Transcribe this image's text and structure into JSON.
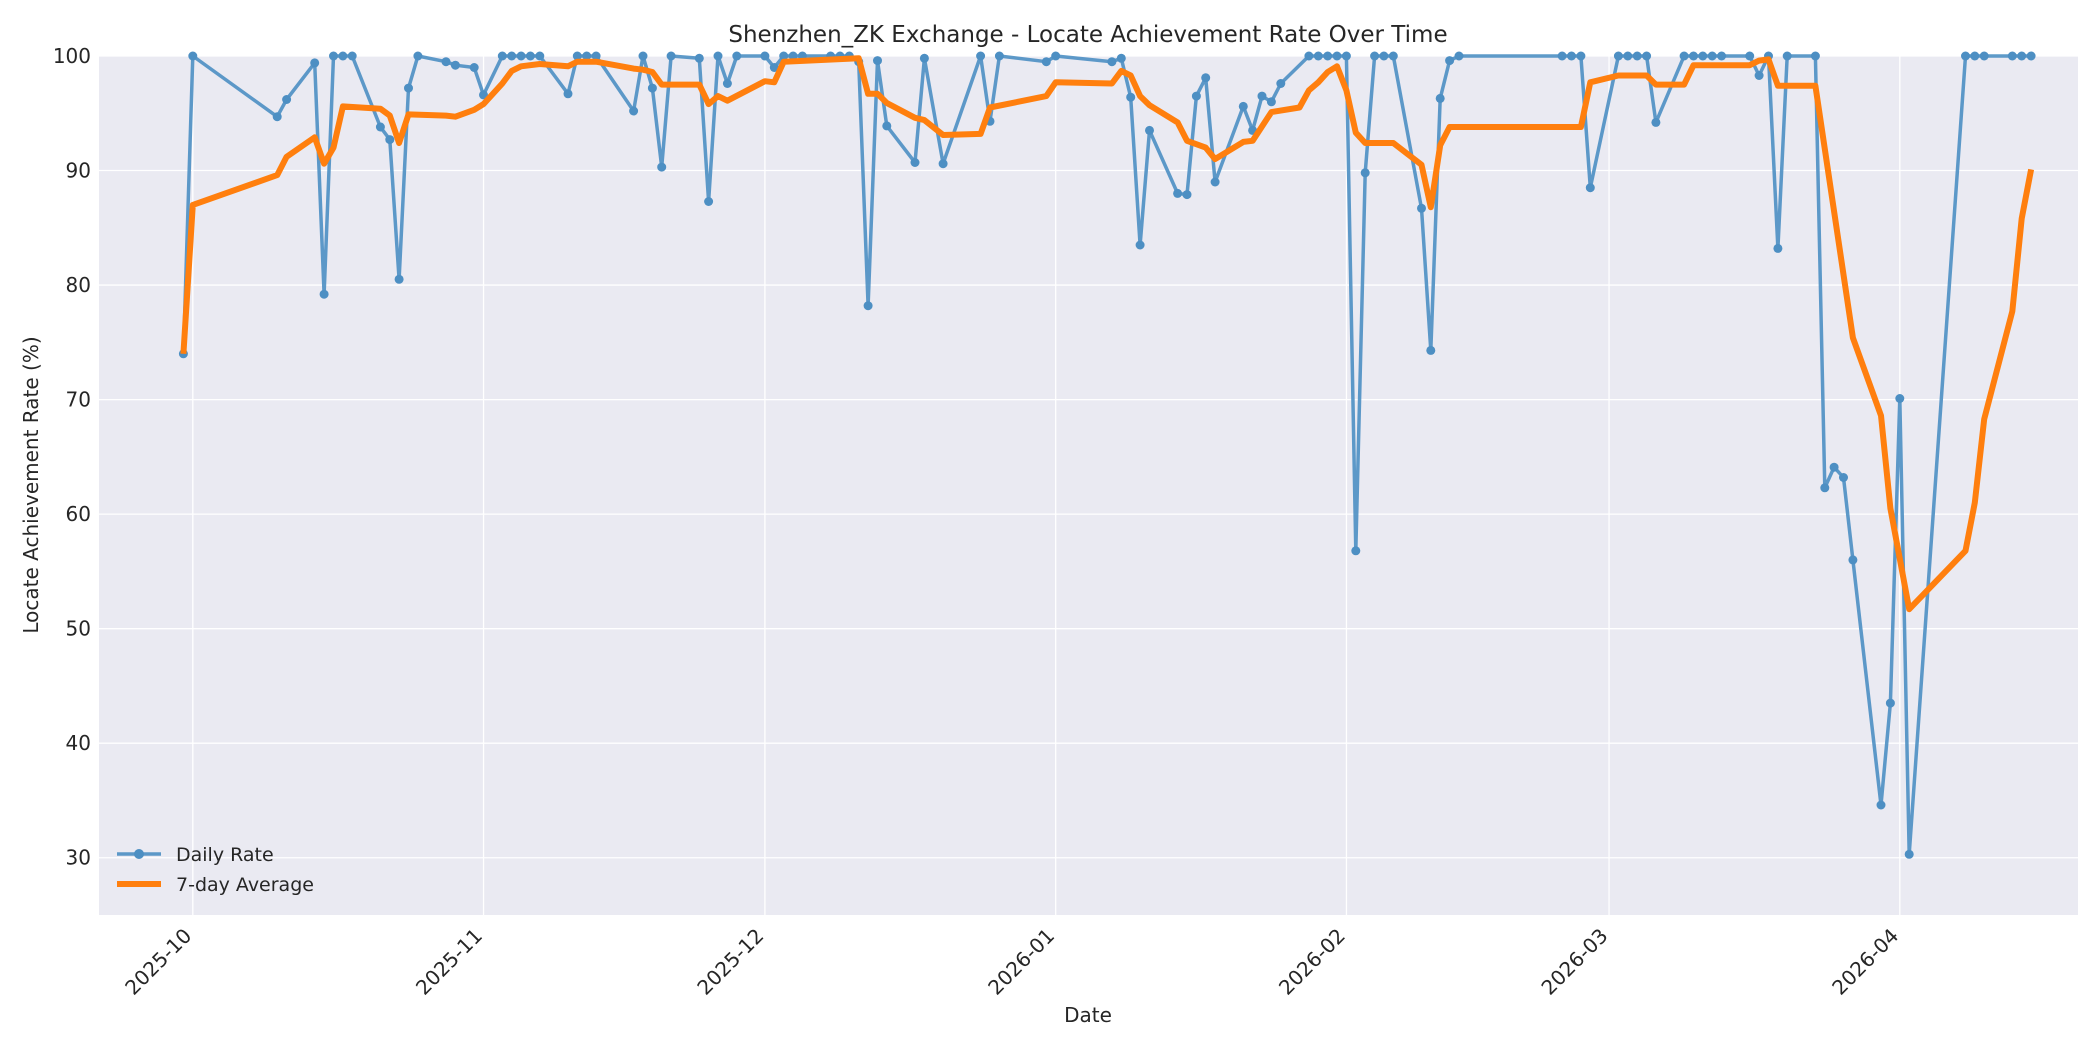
{
  "chart_data": {
    "type": "line",
    "title": "Shenzhen_ZK Exchange - Locate Achievement Rate Over Time",
    "xlabel": "Date",
    "ylabel": "Locate Achievement Rate (%)",
    "xlim": [
      "2025-09-21",
      "2026-04-20"
    ],
    "ylim": [
      25,
      100
    ],
    "y_ticks": [
      30,
      40,
      50,
      60,
      70,
      80,
      90,
      100
    ],
    "x_ticks": [
      "2025-10-01",
      "2025-11-01",
      "2025-12-01",
      "2026-01-01",
      "2026-02-01",
      "2026-03-01",
      "2026-04-01"
    ],
    "x_tick_labels": [
      "2025-10",
      "2025-11",
      "2025-12",
      "2026-01",
      "2026-02",
      "2026-03",
      "2026-04"
    ],
    "grid": true,
    "legend": "lower-left",
    "background": "#eaeaf2",
    "series": [
      {
        "name": "Daily Rate",
        "color": "#4d8fc3",
        "marker": "circle",
        "points": [
          [
            "2025-09-30",
            74.0
          ],
          [
            "2025-10-01",
            100.0
          ],
          [
            "2025-10-10",
            94.7
          ],
          [
            "2025-10-11",
            96.2
          ],
          [
            "2025-10-14",
            99.4
          ],
          [
            "2025-10-15",
            79.2
          ],
          [
            "2025-10-16",
            100.0
          ],
          [
            "2025-10-17",
            100.0
          ],
          [
            "2025-10-18",
            100.0
          ],
          [
            "2025-10-21",
            93.8
          ],
          [
            "2025-10-22",
            92.7
          ],
          [
            "2025-10-23",
            80.5
          ],
          [
            "2025-10-24",
            97.2
          ],
          [
            "2025-10-25",
            100.0
          ],
          [
            "2025-10-28",
            99.5
          ],
          [
            "2025-10-29",
            99.2
          ],
          [
            "2025-10-31",
            99.0
          ],
          [
            "2025-11-01",
            96.6
          ],
          [
            "2025-11-03",
            100.0
          ],
          [
            "2025-11-04",
            100.0
          ],
          [
            "2025-11-05",
            100.0
          ],
          [
            "2025-11-06",
            100.0
          ],
          [
            "2025-11-07",
            100.0
          ],
          [
            "2025-11-10",
            96.7
          ],
          [
            "2025-11-11",
            100.0
          ],
          [
            "2025-11-12",
            100.0
          ],
          [
            "2025-11-13",
            100.0
          ],
          [
            "2025-11-17",
            95.2
          ],
          [
            "2025-11-18",
            100.0
          ],
          [
            "2025-11-19",
            97.2
          ],
          [
            "2025-11-20",
            90.3
          ],
          [
            "2025-11-21",
            100.0
          ],
          [
            "2025-11-24",
            99.8
          ],
          [
            "2025-11-25",
            87.3
          ],
          [
            "2025-11-26",
            100.0
          ],
          [
            "2025-11-27",
            97.6
          ],
          [
            "2025-11-28",
            100.0
          ],
          [
            "2025-12-01",
            100.0
          ],
          [
            "2025-12-02",
            99.0
          ],
          [
            "2025-12-03",
            100.0
          ],
          [
            "2025-12-04",
            100.0
          ],
          [
            "2025-12-05",
            100.0
          ],
          [
            "2025-12-08",
            100.0
          ],
          [
            "2025-12-09",
            100.0
          ],
          [
            "2025-12-10",
            100.0
          ],
          [
            "2025-12-11",
            99.5
          ],
          [
            "2025-12-12",
            78.2
          ],
          [
            "2025-12-13",
            99.6
          ],
          [
            "2025-12-14",
            93.9
          ],
          [
            "2025-12-17",
            90.7
          ],
          [
            "2025-12-18",
            99.8
          ],
          [
            "2025-12-20",
            90.6
          ],
          [
            "2025-12-24",
            100.0
          ],
          [
            "2025-12-25",
            94.3
          ],
          [
            "2025-12-26",
            100.0
          ],
          [
            "2025-12-31",
            99.5
          ],
          [
            "2026-01-01",
            100.0
          ],
          [
            "2026-01-07",
            99.5
          ],
          [
            "2026-01-08",
            99.8
          ],
          [
            "2026-01-09",
            96.4
          ],
          [
            "2026-01-10",
            83.5
          ],
          [
            "2026-01-11",
            93.5
          ],
          [
            "2026-01-14",
            88.0
          ],
          [
            "2026-01-15",
            87.9
          ],
          [
            "2026-01-16",
            96.5
          ],
          [
            "2026-01-17",
            98.1
          ],
          [
            "2026-01-18",
            89.0
          ],
          [
            "2026-01-21",
            95.6
          ],
          [
            "2026-01-22",
            93.5
          ],
          [
            "2026-01-23",
            96.5
          ],
          [
            "2026-01-24",
            96.0
          ],
          [
            "2026-01-25",
            97.6
          ],
          [
            "2026-01-28",
            100.0
          ],
          [
            "2026-01-29",
            100.0
          ],
          [
            "2026-01-30",
            100.0
          ],
          [
            "2026-01-31",
            100.0
          ],
          [
            "2026-02-01",
            100.0
          ],
          [
            "2026-02-02",
            56.8
          ],
          [
            "2026-02-03",
            89.8
          ],
          [
            "2026-02-04",
            100.0
          ],
          [
            "2026-02-05",
            100.0
          ],
          [
            "2026-02-06",
            100.0
          ],
          [
            "2026-02-09",
            86.7
          ],
          [
            "2026-02-10",
            74.3
          ],
          [
            "2026-02-11",
            96.3
          ],
          [
            "2026-02-12",
            99.6
          ],
          [
            "2026-02-13",
            100.0
          ],
          [
            "2026-02-24",
            100.0
          ],
          [
            "2026-02-25",
            100.0
          ],
          [
            "2026-02-26",
            100.0
          ],
          [
            "2026-02-27",
            88.5
          ],
          [
            "2026-03-02",
            100.0
          ],
          [
            "2026-03-03",
            100.0
          ],
          [
            "2026-03-04",
            100.0
          ],
          [
            "2026-03-05",
            100.0
          ],
          [
            "2026-03-06",
            94.2
          ],
          [
            "2026-03-09",
            100.0
          ],
          [
            "2026-03-10",
            100.0
          ],
          [
            "2026-03-11",
            100.0
          ],
          [
            "2026-03-12",
            100.0
          ],
          [
            "2026-03-13",
            100.0
          ],
          [
            "2026-03-16",
            100.0
          ],
          [
            "2026-03-17",
            98.3
          ],
          [
            "2026-03-18",
            100.0
          ],
          [
            "2026-03-19",
            83.2
          ],
          [
            "2026-03-20",
            100.0
          ],
          [
            "2026-03-23",
            100.0
          ],
          [
            "2026-03-24",
            62.3
          ],
          [
            "2026-03-25",
            64.1
          ],
          [
            "2026-03-26",
            63.2
          ],
          [
            "2026-03-27",
            56.0
          ],
          [
            "2026-03-30",
            34.6
          ],
          [
            "2026-03-31",
            43.5
          ],
          [
            "2026-04-01",
            70.1
          ],
          [
            "2026-04-02",
            30.3
          ],
          [
            "2026-04-08",
            100.0
          ],
          [
            "2026-04-09",
            100.0
          ],
          [
            "2026-04-10",
            100.0
          ],
          [
            "2026-04-13",
            100.0
          ],
          [
            "2026-04-14",
            100.0
          ],
          [
            "2026-04-15",
            100.0
          ]
        ]
      },
      {
        "name": "7-day Average",
        "color": "#ff7f0e",
        "marker": "none",
        "points": [
          [
            "2025-09-30",
            74.0
          ],
          [
            "2025-10-01",
            87.0
          ],
          [
            "2025-10-10",
            89.6
          ],
          [
            "2025-10-11",
            91.2
          ],
          [
            "2025-10-14",
            92.9
          ],
          [
            "2025-10-15",
            90.6
          ],
          [
            "2025-10-16",
            92.0
          ],
          [
            "2025-10-17",
            95.6
          ],
          [
            "2025-10-21",
            95.4
          ],
          [
            "2025-10-22",
            94.8
          ],
          [
            "2025-10-23",
            92.4
          ],
          [
            "2025-10-24",
            94.9
          ],
          [
            "2025-10-28",
            94.8
          ],
          [
            "2025-10-29",
            94.7
          ],
          [
            "2025-10-31",
            95.3
          ],
          [
            "2025-11-01",
            95.8
          ],
          [
            "2025-11-03",
            97.6
          ],
          [
            "2025-11-04",
            98.7
          ],
          [
            "2025-11-05",
            99.1
          ],
          [
            "2025-11-07",
            99.3
          ],
          [
            "2025-11-10",
            99.1
          ],
          [
            "2025-11-11",
            99.5
          ],
          [
            "2025-11-13",
            99.5
          ],
          [
            "2025-11-17",
            98.9
          ],
          [
            "2025-11-18",
            98.8
          ],
          [
            "2025-11-19",
            98.6
          ],
          [
            "2025-11-20",
            97.5
          ],
          [
            "2025-11-24",
            97.5
          ],
          [
            "2025-11-25",
            95.8
          ],
          [
            "2025-11-26",
            96.5
          ],
          [
            "2025-11-27",
            96.1
          ],
          [
            "2025-12-01",
            97.8
          ],
          [
            "2025-12-02",
            97.7
          ],
          [
            "2025-12-03",
            99.5
          ],
          [
            "2025-12-11",
            99.8
          ],
          [
            "2025-12-12",
            96.7
          ],
          [
            "2025-12-13",
            96.7
          ],
          [
            "2025-12-14",
            95.9
          ],
          [
            "2025-12-17",
            94.6
          ],
          [
            "2025-12-18",
            94.4
          ],
          [
            "2025-12-20",
            93.1
          ],
          [
            "2025-12-24",
            93.2
          ],
          [
            "2025-12-25",
            95.5
          ],
          [
            "2025-12-31",
            96.5
          ],
          [
            "2026-01-01",
            97.7
          ],
          [
            "2026-01-07",
            97.6
          ],
          [
            "2026-01-08",
            98.7
          ],
          [
            "2026-01-09",
            98.3
          ],
          [
            "2026-01-10",
            96.5
          ],
          [
            "2026-01-11",
            95.7
          ],
          [
            "2026-01-14",
            94.2
          ],
          [
            "2026-01-15",
            92.6
          ],
          [
            "2026-01-17",
            92.0
          ],
          [
            "2026-01-18",
            91.0
          ],
          [
            "2026-01-21",
            92.5
          ],
          [
            "2026-01-22",
            92.6
          ],
          [
            "2026-01-24",
            95.1
          ],
          [
            "2026-01-27",
            95.5
          ],
          [
            "2026-01-28",
            97.0
          ],
          [
            "2026-01-29",
            97.7
          ],
          [
            "2026-01-30",
            98.6
          ],
          [
            "2026-01-31",
            99.1
          ],
          [
            "2026-02-01",
            97.0
          ],
          [
            "2026-02-02",
            93.3
          ],
          [
            "2026-02-03",
            92.4
          ],
          [
            "2026-02-06",
            92.4
          ],
          [
            "2026-02-09",
            90.5
          ],
          [
            "2026-02-10",
            86.8
          ],
          [
            "2026-02-11",
            92.2
          ],
          [
            "2026-02-12",
            93.8
          ],
          [
            "2026-02-26",
            93.8
          ],
          [
            "2026-02-27",
            97.7
          ],
          [
            "2026-03-02",
            98.3
          ],
          [
            "2026-03-05",
            98.3
          ],
          [
            "2026-03-06",
            97.5
          ],
          [
            "2026-03-09",
            97.5
          ],
          [
            "2026-03-10",
            99.2
          ],
          [
            "2026-03-16",
            99.2
          ],
          [
            "2026-03-17",
            99.6
          ],
          [
            "2026-03-18",
            99.7
          ],
          [
            "2026-03-19",
            97.4
          ],
          [
            "2026-03-23",
            97.4
          ],
          [
            "2026-03-27",
            75.4
          ],
          [
            "2026-03-30",
            68.6
          ],
          [
            "2026-03-31",
            60.5
          ],
          [
            "2026-04-02",
            51.7
          ],
          [
            "2026-04-08",
            56.8
          ],
          [
            "2026-04-09",
            61.0
          ],
          [
            "2026-04-10",
            68.3
          ],
          [
            "2026-04-13",
            77.7
          ],
          [
            "2026-04-14",
            85.8
          ],
          [
            "2026-04-15",
            90.1
          ]
        ]
      }
    ]
  }
}
